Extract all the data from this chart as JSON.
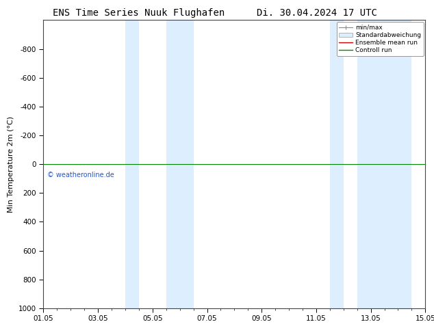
{
  "title_left": "ENS Time Series Nuuk Flughafen",
  "title_right": "Di. 30.04.2024 17 UTC",
  "ylabel": "Min Temperature 2m (°C)",
  "copyright": "© weatheronline.de",
  "xlim_left": 0,
  "xlim_right": 14,
  "ylim_top": -1000,
  "ylim_bottom": 1000,
  "yticks": [
    -800,
    -600,
    -400,
    -200,
    0,
    200,
    400,
    600,
    800,
    1000
  ],
  "xtick_positions": [
    0,
    2,
    4,
    6,
    8,
    10,
    12,
    14
  ],
  "xtick_labels": [
    "01.05",
    "03.05",
    "05.05",
    "07.05",
    "09.05",
    "11.05",
    "13.05",
    "15.05"
  ],
  "shade_regions": [
    [
      3.0,
      3.5
    ],
    [
      4.5,
      5.5
    ],
    [
      10.5,
      11.0
    ],
    [
      11.5,
      13.5
    ]
  ],
  "shade_color": "#ddeeff",
  "control_run_y": 0,
  "control_run_color": "#008800",
  "ensemble_mean_color": "#cc0000",
  "minmax_color": "#888888",
  "stddev_color": "#cccccc",
  "background_color": "#ffffff",
  "plot_bg_color": "#ffffff",
  "legend_entries": [
    "min/max",
    "Standardabweichung",
    "Ensemble mean run",
    "Controll run"
  ],
  "legend_colors": [
    "#888888",
    "#cccccc",
    "#cc0000",
    "#008800"
  ],
  "title_fontsize": 10,
  "axis_fontsize": 8,
  "tick_fontsize": 7.5
}
